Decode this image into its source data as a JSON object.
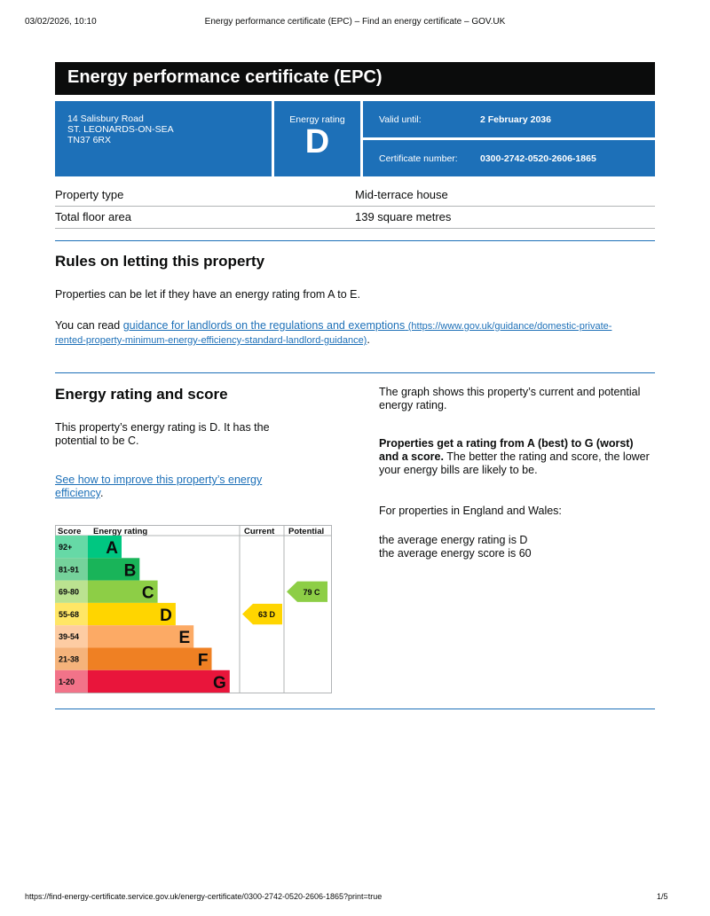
{
  "print_header": {
    "datetime": "03/02/2026, 10:10",
    "page_title": "Energy performance certificate (EPC) – Find an energy certificate – GOV.UK"
  },
  "print_footer": {
    "url": "https://find-energy-certificate.service.gov.uk/energy-certificate/0300-2742-0520-2606-1865?print=true",
    "page": "1/5"
  },
  "title": "Energy performance certificate (EPC)",
  "address": {
    "line1": "14 Salisbury Road",
    "line2": "ST. LEONARDS-ON-SEA",
    "line3": "TN37 6RX"
  },
  "energy_rating": {
    "label": "Energy rating",
    "value": "D"
  },
  "valid_until": {
    "label": "Valid until:",
    "value": "2 February 2036"
  },
  "certificate_number": {
    "label": "Certificate number:",
    "value": "0300-2742-0520-2606-1865"
  },
  "property": [
    {
      "label": "Property type",
      "value": "Mid-terrace house"
    },
    {
      "label": "Total floor area",
      "value": "139 square metres"
    }
  ],
  "letting": {
    "heading": "Rules on letting this property",
    "p1": "Properties can be let if they have an energy rating from A to E.",
    "p2_prefix": "You can read ",
    "link_text": "guidance for landlords on the regulations and exemptions",
    "link_url_text": "(https://www.gov.uk/guidance/domestic-private-rented-property-minimum-energy-efficiency-standard-landlord-guidance)",
    "p2_suffix": "."
  },
  "score_section": {
    "heading": "Energy rating and score",
    "p1": "This property’s energy rating is D. It has the potential to be C.",
    "link_text": "See how to improve this property’s energy efficiency",
    "link_suffix": ".",
    "right_p1": "The graph shows this property’s current and potential energy rating.",
    "right_p2_bold": "Properties get a rating from A (best) to G (worst) and a score.",
    "right_p2_rest": " The better the rating and score, the lower your energy bills are likely to be.",
    "right_p3": "For properties in England and Wales:",
    "avg_rating": "the average energy rating is D",
    "avg_score": "the average energy score is 60"
  },
  "chart_data": {
    "type": "table",
    "headers": [
      "Score",
      "Energy rating",
      "Current",
      "Potential"
    ],
    "bands": [
      {
        "score": "92+",
        "letter": "A",
        "color": "#00c781",
        "score_bg": "#66d9a6"
      },
      {
        "score": "81-91",
        "letter": "B",
        "color": "#19b459",
        "score_bg": "#75d29b"
      },
      {
        "score": "69-80",
        "letter": "C",
        "color": "#8dce46",
        "score_bg": "#bbe290"
      },
      {
        "score": "55-68",
        "letter": "D",
        "color": "#ffd500",
        "score_bg": "#ffe666"
      },
      {
        "score": "39-54",
        "letter": "E",
        "color": "#fcaa65",
        "score_bg": "#fdcca3"
      },
      {
        "score": "21-38",
        "letter": "F",
        "color": "#ef8023",
        "score_bg": "#f5b37b"
      },
      {
        "score": "1-20",
        "letter": "G",
        "color": "#e9153b",
        "score_bg": "#f27389"
      }
    ],
    "current": {
      "score": 63,
      "letter": "D",
      "label": "63 D"
    },
    "potential": {
      "score": 79,
      "letter": "C",
      "label": "79 C"
    }
  }
}
